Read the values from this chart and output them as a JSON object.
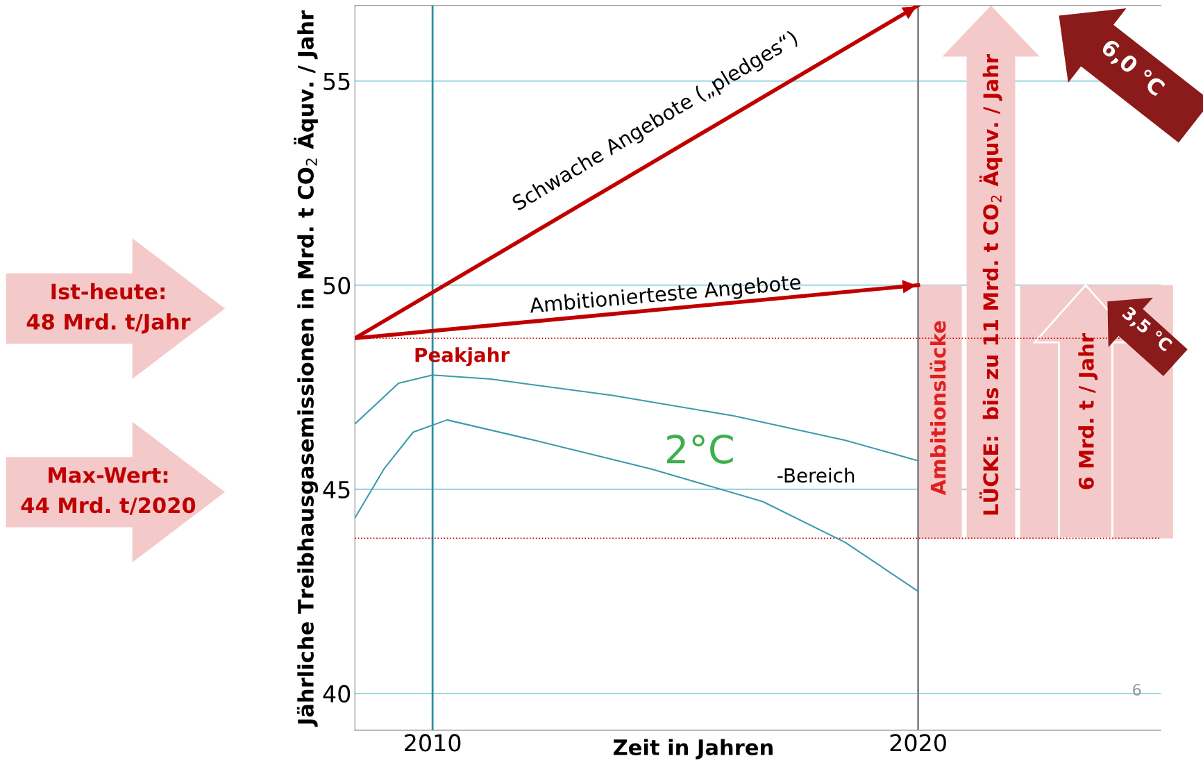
{
  "chart_data": {
    "type": "line",
    "xlabel": "Zeit in Jahren",
    "ylabel": "Jährliche Treibhausgasemissionen in Mrd. t CO$_{2}$ Äquv. / Jahr",
    "xlim": [
      2008.4,
      2025
    ],
    "xticks": [
      2010,
      2020
    ],
    "ylim": [
      39.1,
      56.85
    ],
    "yticks": [
      40,
      45,
      50,
      55
    ],
    "grid": "y",
    "marker": "none",
    "line_style": "solid",
    "legend": false,
    "series": [
      {
        "color": "#c00000",
        "x": [
          2008.4,
          2020
        ],
        "values": [
          48.7,
          56.85
        ]
      },
      {
        "color": "#c00000",
        "x": [
          2008.4,
          2020
        ],
        "values": [
          48.7,
          50.0
        ]
      },
      {
        "color": "#3a9bab",
        "x": [
          2008.4,
          2009.3,
          2010,
          2011.2,
          2013.7,
          2016.2,
          2018.5,
          2020
        ],
        "values": [
          46.6,
          47.6,
          47.8,
          47.7,
          47.3,
          46.8,
          46.2,
          45.7
        ]
      },
      {
        "color": "#3a9bab",
        "x": [
          2008.4,
          2009.0,
          2009.6,
          2010.3,
          2012.1,
          2014.5,
          2016.8,
          2018.5,
          2020
        ],
        "values": [
          44.3,
          45.5,
          46.4,
          46.7,
          46.2,
          45.5,
          44.7,
          43.7,
          42.5
        ]
      }
    ],
    "ref_lines": [
      {
        "axis": "x",
        "value": 2010,
        "color": "#2e8fa3",
        "line_style": "solid"
      },
      {
        "axis": "x",
        "value": 2020,
        "color": "#888888",
        "line_style": "solid"
      },
      {
        "axis": "y",
        "value": 48.7,
        "color": "#c00000",
        "line_style": "dotted"
      },
      {
        "axis": "y",
        "value": 43.8,
        "color": "#c00000",
        "line_style": "dotted"
      }
    ],
    "annotations": [
      "Schwache Angebote („pledges“)",
      "Ambitionierteste Angebote",
      "Peakjahr",
      "2°C",
      "-Bereich",
      "Ambitionslücke",
      "LÜCKE:  bis zu 11 Mrd. t CO$_{2}$ Äquv. / Jahr",
      "6 Mrd. t / Jahr",
      "6,0 °C",
      "3,5 °C",
      "Ist-heute:\n48 Mrd. t/Jahr",
      "Max-Wert:\n44 Mrd. t/2020",
      "6"
    ]
  }
}
